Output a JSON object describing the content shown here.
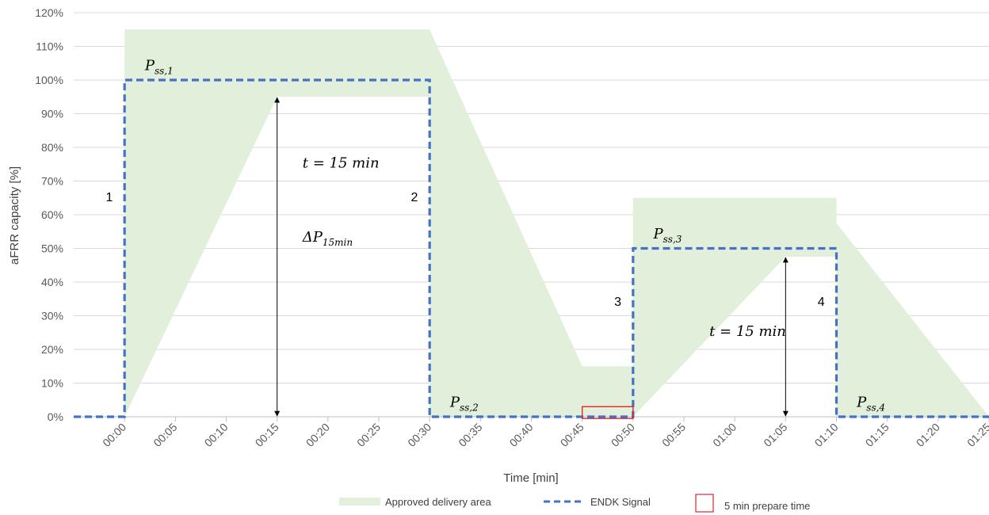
{
  "chart_data": {
    "type": "area",
    "xlabel": "Time [min]",
    "ylabel": "aFRR capacity [%]",
    "xlim": [
      -5,
      85
    ],
    "ylim": [
      0,
      120
    ],
    "y_ticks": [
      0,
      10,
      20,
      30,
      40,
      50,
      60,
      70,
      80,
      90,
      100,
      110,
      120
    ],
    "y_tick_labels": [
      "0%",
      "10%",
      "20%",
      "30%",
      "40%",
      "50%",
      "60%",
      "70%",
      "80%",
      "90%",
      "100%",
      "110%",
      "120%"
    ],
    "x_ticks": [
      0,
      5,
      10,
      15,
      20,
      25,
      30,
      35,
      40,
      45,
      50,
      55,
      60,
      65,
      70,
      75,
      80,
      85
    ],
    "x_tick_labels": [
      "00:00",
      "00:05",
      "00:10",
      "00:15",
      "00:20",
      "00:25",
      "00:30",
      "00:35",
      "00:40",
      "00:45",
      "00:50",
      "00:55",
      "01:00",
      "01:05",
      "01:10",
      "01:15",
      "01:20",
      "01:25"
    ],
    "grid": true,
    "legend_position": "bottom",
    "colors": {
      "area": "#e2efda",
      "signal": "#4472c4",
      "prepare": "#e32626",
      "grid": "#d9d9d9",
      "axis": "#bfbfbf"
    },
    "series": [
      {
        "name": "Approved delivery area",
        "kind": "area",
        "upper": [
          {
            "x": 0,
            "y": 115
          },
          {
            "x": 30,
            "y": 115
          },
          {
            "x": 45,
            "y": 15
          },
          {
            "x": 50,
            "y": 15
          },
          {
            "x": 50,
            "y": 65
          },
          {
            "x": 70,
            "y": 65
          },
          {
            "x": 70,
            "y": 57.5
          },
          {
            "x": 85,
            "y": 0
          }
        ],
        "lower": [
          {
            "x": 0,
            "y": 0
          },
          {
            "x": 15,
            "y": 95
          },
          {
            "x": 30,
            "y": 95
          },
          {
            "x": 30,
            "y": 0
          },
          {
            "x": 50,
            "y": 0
          },
          {
            "x": 65,
            "y": 47.5
          },
          {
            "x": 70,
            "y": 47.5
          },
          {
            "x": 70,
            "y": 0
          },
          {
            "x": 85,
            "y": 0
          }
        ]
      },
      {
        "name": "ENDK Signal",
        "kind": "step",
        "points": [
          {
            "x": -5,
            "y": 0
          },
          {
            "x": 0,
            "y": 0
          },
          {
            "x": 0,
            "y": 100
          },
          {
            "x": 30,
            "y": 100
          },
          {
            "x": 30,
            "y": 0
          },
          {
            "x": 50,
            "y": 0
          },
          {
            "x": 50,
            "y": 50
          },
          {
            "x": 70,
            "y": 50
          },
          {
            "x": 70,
            "y": 0
          },
          {
            "x": 85,
            "y": 0
          }
        ]
      },
      {
        "name": "5 min prepare time",
        "kind": "box",
        "x": [
          45,
          50
        ],
        "y": [
          -0.5,
          3
        ]
      }
    ],
    "annotations": [
      {
        "kind": "number",
        "text": "1",
        "x": -1.5,
        "y": 64
      },
      {
        "kind": "number",
        "text": "2",
        "x": 28.5,
        "y": 64
      },
      {
        "kind": "number",
        "text": "3",
        "x": 48.5,
        "y": 33
      },
      {
        "kind": "number",
        "text": "4",
        "x": 68.5,
        "y": 33
      },
      {
        "kind": "math",
        "main": "P",
        "sub": "ss,1",
        "x": 2,
        "y": 103
      },
      {
        "kind": "math",
        "main": "P",
        "sub": "ss,2",
        "x": 32,
        "y": 3
      },
      {
        "kind": "math",
        "main": "P",
        "sub": "ss,3",
        "x": 52,
        "y": 53
      },
      {
        "kind": "math",
        "main": "P",
        "sub": "ss,4",
        "x": 72,
        "y": 3
      },
      {
        "kind": "math",
        "main": "t = 15 min",
        "sub": "",
        "x": 17.5,
        "y": 74
      },
      {
        "kind": "math",
        "main": "ΔP",
        "sub": "15min",
        "x": 17.5,
        "y": 52
      },
      {
        "kind": "math",
        "main": "t = 15 min",
        "sub": "",
        "x": 57.5,
        "y": 24
      }
    ],
    "arrows": [
      {
        "x": 15,
        "y1": 0,
        "y2": 95
      },
      {
        "x": 65,
        "y1": 0,
        "y2": 47.5
      }
    ]
  }
}
